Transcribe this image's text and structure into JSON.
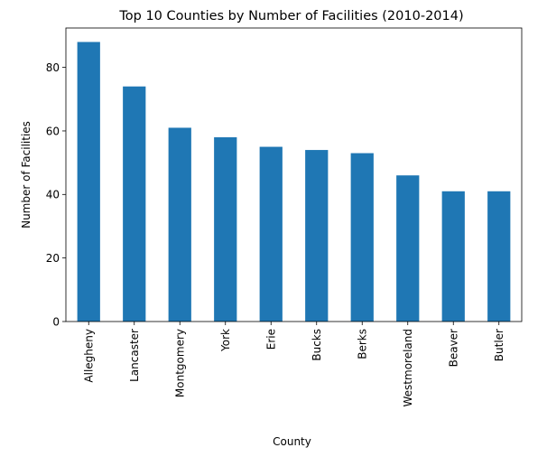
{
  "chart_data": {
    "type": "bar",
    "title": "Top 10 Counties by Number of Facilities (2010-2014)",
    "xlabel": "County",
    "ylabel": "Number of Facilities",
    "categories": [
      "Allegheny",
      "Lancaster",
      "Montgomery",
      "York",
      "Erie",
      "Bucks",
      "Berks",
      "Westmoreland",
      "Beaver",
      "Butler"
    ],
    "values": [
      88,
      74,
      61,
      58,
      55,
      54,
      53,
      46,
      41,
      41
    ],
    "ylim": [
      0,
      92.4
    ],
    "yticks": [
      "0",
      "20",
      "40",
      "60",
      "80"
    ],
    "grid": false,
    "bar_color": "#1f77b4"
  }
}
